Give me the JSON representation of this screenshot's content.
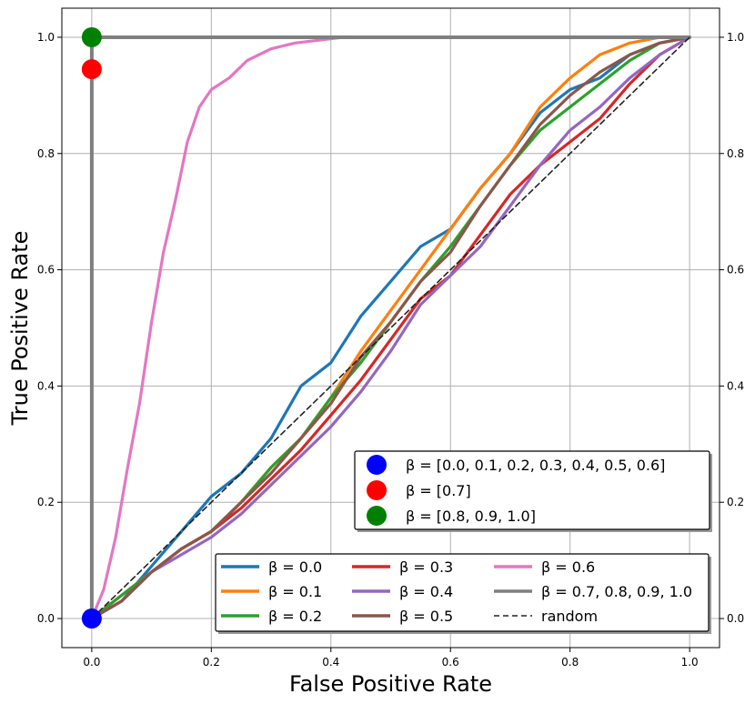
{
  "chart_data": {
    "type": "line",
    "xlabel": "False Positive Rate",
    "ylabel": "True Positive Rate",
    "xlim": [
      -0.05,
      1.05
    ],
    "ylim": [
      -0.05,
      1.05
    ],
    "xticks": [
      0.0,
      0.2,
      0.4,
      0.6,
      0.8,
      1.0
    ],
    "yticks": [
      0.0,
      0.2,
      0.4,
      0.6,
      0.8,
      1.0
    ],
    "xtick_labels": [
      "0.0",
      "0.2",
      "0.4",
      "0.6",
      "0.8",
      "1.0"
    ],
    "ytick_labels": [
      "0.0",
      "0.2",
      "0.4",
      "0.6",
      "0.8",
      "1.0"
    ],
    "grid": true,
    "series": [
      {
        "name": "β = 0.0",
        "color": "#1f77b4",
        "x": [
          0,
          0.05,
          0.1,
          0.15,
          0.2,
          0.25,
          0.3,
          0.35,
          0.4,
          0.45,
          0.5,
          0.55,
          0.6,
          0.65,
          0.7,
          0.75,
          0.8,
          0.85,
          0.9,
          0.95,
          1.0
        ],
        "y": [
          0,
          0.03,
          0.09,
          0.15,
          0.21,
          0.25,
          0.31,
          0.4,
          0.44,
          0.52,
          0.58,
          0.64,
          0.67,
          0.74,
          0.8,
          0.87,
          0.91,
          0.93,
          0.97,
          0.99,
          1.0
        ]
      },
      {
        "name": "β = 0.1",
        "color": "#ff7f0e",
        "x": [
          0,
          0.05,
          0.1,
          0.15,
          0.2,
          0.25,
          0.3,
          0.35,
          0.4,
          0.45,
          0.5,
          0.55,
          0.6,
          0.65,
          0.7,
          0.75,
          0.8,
          0.85,
          0.9,
          0.95,
          1.0
        ],
        "y": [
          0,
          0.04,
          0.08,
          0.12,
          0.15,
          0.2,
          0.26,
          0.31,
          0.38,
          0.46,
          0.53,
          0.6,
          0.67,
          0.74,
          0.8,
          0.88,
          0.93,
          0.97,
          0.99,
          1.0,
          1.0
        ]
      },
      {
        "name": "β = 0.2",
        "color": "#2ca02c",
        "x": [
          0,
          0.05,
          0.1,
          0.15,
          0.2,
          0.25,
          0.3,
          0.35,
          0.4,
          0.45,
          0.5,
          0.55,
          0.6,
          0.65,
          0.7,
          0.75,
          0.8,
          0.85,
          0.9,
          0.95,
          1.0
        ],
        "y": [
          0,
          0.04,
          0.08,
          0.12,
          0.15,
          0.2,
          0.26,
          0.31,
          0.38,
          0.44,
          0.51,
          0.58,
          0.64,
          0.71,
          0.78,
          0.84,
          0.88,
          0.92,
          0.96,
          0.99,
          1.0
        ]
      },
      {
        "name": "β = 0.3",
        "color": "#d62728",
        "x": [
          0,
          0.05,
          0.1,
          0.15,
          0.2,
          0.25,
          0.3,
          0.35,
          0.4,
          0.45,
          0.5,
          0.55,
          0.6,
          0.65,
          0.7,
          0.75,
          0.8,
          0.85,
          0.9,
          0.95,
          1.0
        ],
        "y": [
          0,
          0.03,
          0.08,
          0.12,
          0.15,
          0.19,
          0.24,
          0.29,
          0.35,
          0.41,
          0.48,
          0.55,
          0.59,
          0.66,
          0.73,
          0.78,
          0.82,
          0.86,
          0.92,
          0.97,
          1.0
        ]
      },
      {
        "name": "β = 0.4",
        "color": "#9467bd",
        "x": [
          0,
          0.05,
          0.1,
          0.15,
          0.2,
          0.25,
          0.3,
          0.35,
          0.4,
          0.45,
          0.5,
          0.55,
          0.6,
          0.65,
          0.7,
          0.75,
          0.8,
          0.85,
          0.9,
          0.95,
          1.0
        ],
        "y": [
          0,
          0.03,
          0.08,
          0.11,
          0.14,
          0.18,
          0.23,
          0.28,
          0.33,
          0.39,
          0.46,
          0.54,
          0.59,
          0.64,
          0.71,
          0.78,
          0.84,
          0.88,
          0.93,
          0.97,
          1.0
        ]
      },
      {
        "name": "β = 0.5",
        "color": "#8c564b",
        "x": [
          0,
          0.05,
          0.1,
          0.15,
          0.2,
          0.25,
          0.3,
          0.35,
          0.4,
          0.45,
          0.5,
          0.55,
          0.6,
          0.65,
          0.7,
          0.75,
          0.8,
          0.85,
          0.9,
          0.95,
          1.0
        ],
        "y": [
          0,
          0.03,
          0.08,
          0.12,
          0.15,
          0.2,
          0.25,
          0.31,
          0.37,
          0.45,
          0.51,
          0.58,
          0.63,
          0.71,
          0.78,
          0.85,
          0.9,
          0.94,
          0.97,
          0.99,
          1.0
        ]
      },
      {
        "name": "β = 0.6",
        "color": "#e377c2",
        "x": [
          0,
          0.02,
          0.04,
          0.06,
          0.08,
          0.1,
          0.12,
          0.14,
          0.16,
          0.18,
          0.2,
          0.23,
          0.26,
          0.3,
          0.34,
          0.38,
          0.42,
          0.46
        ],
        "y": [
          0,
          0.05,
          0.14,
          0.26,
          0.37,
          0.51,
          0.63,
          0.72,
          0.82,
          0.88,
          0.91,
          0.93,
          0.96,
          0.98,
          0.99,
          0.995,
          1.0,
          1.0
        ]
      },
      {
        "name": "β = 0.7, 0.8, 0.9, 1.0",
        "color": "#7f7f7f",
        "x": [
          0,
          0,
          1.0
        ],
        "y": [
          0,
          1.0,
          1.0
        ]
      },
      {
        "name": "random",
        "color": "#222222",
        "dashed": true,
        "x": [
          0,
          1.0
        ],
        "y": [
          0,
          1.0
        ]
      }
    ],
    "points": [
      {
        "x": 0.0,
        "y": 0.0,
        "color": "#0000ff",
        "label": "β =  [0.0, 0.1, 0.2, 0.3, 0.4, 0.5, 0.6]"
      },
      {
        "x": 0.0,
        "y": 0.945,
        "color": "#ff0000",
        "label": "β =  [0.7]"
      },
      {
        "x": 0.0,
        "y": 1.0,
        "color": "#008000",
        "label": "β =  [0.8, 0.9, 1.0]"
      }
    ],
    "legends": {
      "points_legend_placement": "lower-right",
      "lines_legend_placement": "lower-right"
    }
  }
}
